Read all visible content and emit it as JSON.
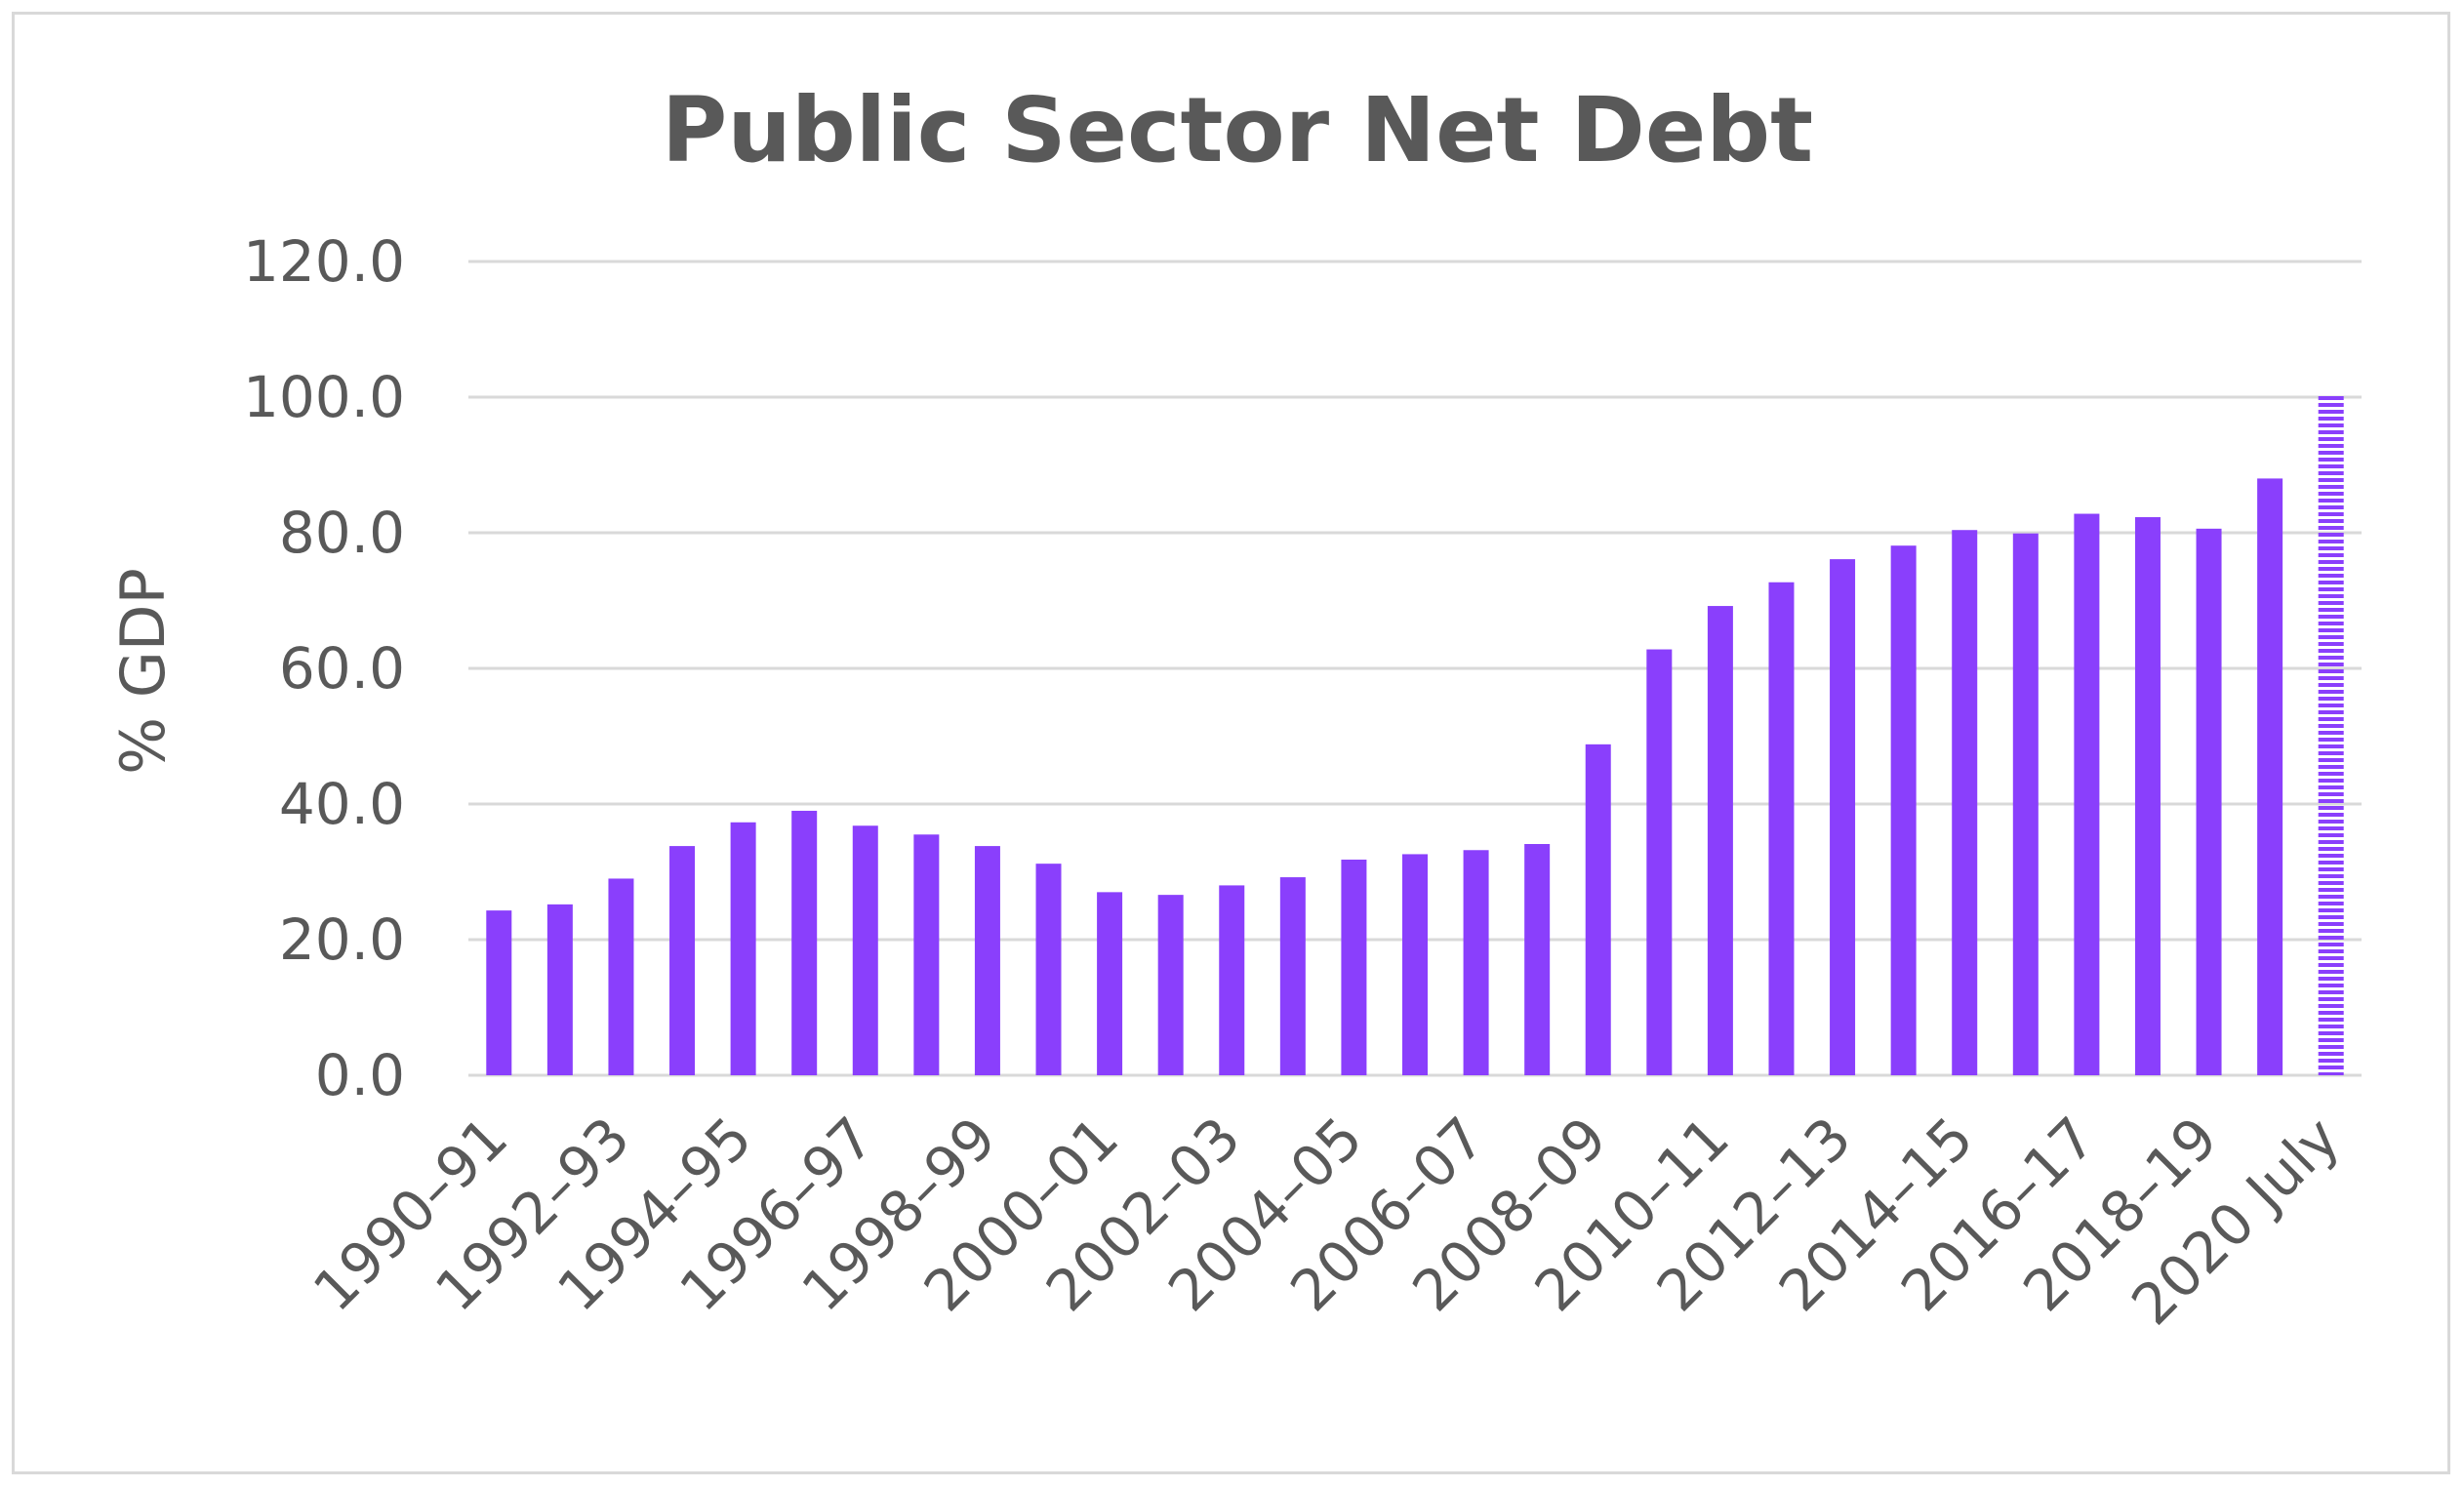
{
  "colors": {
    "bar": "#8a3ffc",
    "grid": "#d9d9d9",
    "text": "#595959"
  },
  "chart_data": {
    "type": "bar",
    "title": "Public Sector Net Debt",
    "ylabel": "% GDP",
    "xlabel": "",
    "ylim": [
      0,
      120
    ],
    "yticks": [
      "0.0",
      "20.0",
      "40.0",
      "60.0",
      "80.0",
      "100.0",
      "120.0"
    ],
    "grid": true,
    "legend": "none",
    "categories": [
      "1990-91",
      "1991-92",
      "1992-93",
      "1993-94",
      "1994-95",
      "1995-96",
      "1996-97",
      "1997-98",
      "1998-99",
      "1999-00",
      "2000-01",
      "2001-02",
      "2002-03",
      "2003-04",
      "2004-05",
      "2005-06",
      "2006-07",
      "2007-08",
      "2008-09",
      "2009-10",
      "2010-11",
      "2011-12",
      "2012-13",
      "2013-14",
      "2014-15",
      "2015-16",
      "2016-17",
      "2017-18",
      "2018-19",
      "2019-20",
      "2020 July"
    ],
    "category_labels_shown": [
      "1990–91",
      "1992–93",
      "1994–95",
      "1996–97",
      "1998–99",
      "2000–01",
      "2002–03",
      "2004–05",
      "2006–07",
      "2008–09",
      "2010–11",
      "2012–13",
      "2014–15",
      "2016–17",
      "2018–19",
      "2020 July"
    ],
    "values": [
      24.3,
      25.2,
      29.0,
      33.8,
      37.3,
      39.0,
      36.8,
      35.5,
      33.8,
      31.2,
      27.0,
      26.6,
      28.0,
      29.2,
      31.8,
      32.6,
      33.2,
      34.1,
      48.8,
      62.8,
      69.2,
      72.7,
      76.1,
      78.1,
      80.4,
      79.9,
      82.8,
      82.3,
      80.6,
      88.0,
      100.5
    ],
    "last_bar_pattern": "hatched"
  }
}
